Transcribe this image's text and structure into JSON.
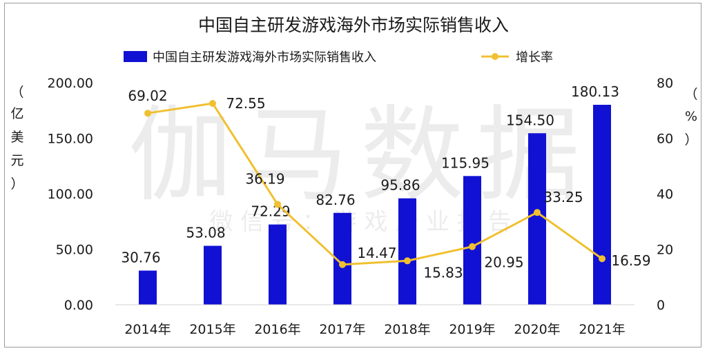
{
  "chart_data": {
    "type": "bar",
    "title": "中国自主研发游戏海外市场实际销售收入",
    "categories": [
      "2014年",
      "2015年",
      "2016年",
      "2017年",
      "2018年",
      "2019年",
      "2020年",
      "2021年"
    ],
    "series": [
      {
        "name": "中国自主研发游戏海外市场实际销售收入",
        "type": "bar",
        "axis": "left",
        "color": "#1111d4",
        "values": [
          30.76,
          53.08,
          72.29,
          82.76,
          95.86,
          115.95,
          154.5,
          180.13
        ],
        "labels": [
          "30.76",
          "53.08",
          "72.29",
          "82.76",
          "95.86",
          "115.95",
          "154.50",
          "180.13"
        ]
      },
      {
        "name": "增长率",
        "type": "line",
        "axis": "right",
        "color": "#f0c030",
        "values": [
          69.02,
          72.55,
          36.19,
          14.47,
          15.83,
          20.95,
          33.25,
          16.59
        ],
        "labels": [
          "69.02",
          "72.55",
          "36.19",
          "14.47",
          "15.83",
          "20.95",
          "33.25",
          "16.59"
        ]
      }
    ],
    "y_left": {
      "label": "（亿美元）",
      "label_chars": [
        "（",
        "亿",
        "美",
        "元",
        "）"
      ],
      "min": 0,
      "max": 200,
      "ticks": [
        "0.00",
        "50.00",
        "100.00",
        "150.00",
        "200.00"
      ]
    },
    "y_right": {
      "label": "（%）",
      "label_chars": [
        "（",
        "%",
        "）"
      ],
      "min": 0,
      "max": 80,
      "ticks": [
        "0",
        "20",
        "40",
        "60",
        "80"
      ]
    },
    "grid": false,
    "legend_position": "top"
  },
  "watermark": {
    "line1": "伽马数据",
    "line2": "微 信 号 ： 游 戏 产 业 报 告"
  }
}
